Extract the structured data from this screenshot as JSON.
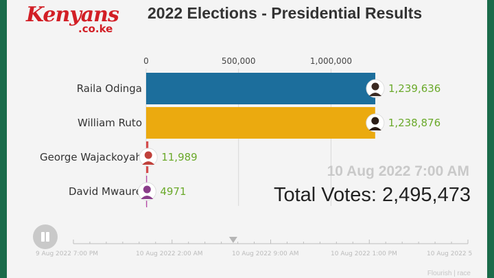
{
  "header": {
    "logo_brand": "Kenyans",
    "logo_domain": ".co.ke",
    "title": "2022 Elections - Presidential Results"
  },
  "chart_data": {
    "type": "bar",
    "orientation": "horizontal",
    "categories": [
      "Raila Odinga",
      "William Ruto",
      "George Wajackoyah",
      "David Mwaure"
    ],
    "values": [
      1239636,
      1238876,
      11989,
      4971
    ],
    "value_labels": [
      "1,239,636",
      "1,238,876",
      "11,989",
      "4971"
    ],
    "bar_colors": [
      "#1c6e9c",
      "#ebaa0f",
      "#d44c4c",
      "#b64aa8"
    ],
    "avatar_colors": [
      "#3b2a22",
      "#2b1d17",
      "#c0413b",
      "#8a3d8a"
    ],
    "value_label_color": "#6aa92a",
    "axis": {
      "position": "top",
      "ticks": [
        0,
        500000,
        1000000
      ],
      "tick_labels": [
        "0",
        "500,000",
        "1,000,000"
      ],
      "xlim": [
        0,
        1239636
      ]
    },
    "grid": true,
    "title": "2022 Elections - Presidential Results"
  },
  "overlay": {
    "timestamp": "10 Aug 2022 7:00 AM",
    "total_label": "Total Votes: ",
    "total_value": "2,495,473"
  },
  "timeline": {
    "labels": [
      "9 Aug 2022 7:00 PM",
      "10 Aug 2022 2:00 AM",
      "10 Aug 2022 9:00 AM",
      "10 Aug 2022 1:00 PM",
      "10 Aug 2022 5"
    ],
    "current_fraction": 0.405
  },
  "footer": {
    "credit": "Flourish | race"
  }
}
